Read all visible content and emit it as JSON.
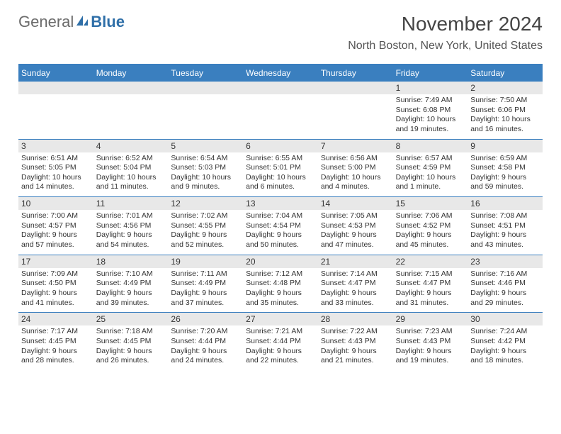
{
  "logo": {
    "text1": "General",
    "text2": "Blue",
    "brand_color": "#3a7fbf"
  },
  "title": "November 2024",
  "location": "North Boston, New York, United States",
  "colors": {
    "header_bg": "#3a7fbf",
    "date_bg": "#e8e8e8",
    "rule": "#3a7fbf",
    "logo_blue": "#2f6fa8"
  },
  "day_headers": [
    "Sunday",
    "Monday",
    "Tuesday",
    "Wednesday",
    "Thursday",
    "Friday",
    "Saturday"
  ],
  "weeks": [
    {
      "dates": [
        "",
        "",
        "",
        "",
        "",
        "1",
        "2"
      ],
      "info": [
        "",
        "",
        "",
        "",
        "",
        "Sunrise: 7:49 AM\nSunset: 6:08 PM\nDaylight: 10 hours and 19 minutes.",
        "Sunrise: 7:50 AM\nSunset: 6:06 PM\nDaylight: 10 hours and 16 minutes."
      ]
    },
    {
      "dates": [
        "3",
        "4",
        "5",
        "6",
        "7",
        "8",
        "9"
      ],
      "info": [
        "Sunrise: 6:51 AM\nSunset: 5:05 PM\nDaylight: 10 hours and 14 minutes.",
        "Sunrise: 6:52 AM\nSunset: 5:04 PM\nDaylight: 10 hours and 11 minutes.",
        "Sunrise: 6:54 AM\nSunset: 5:03 PM\nDaylight: 10 hours and 9 minutes.",
        "Sunrise: 6:55 AM\nSunset: 5:01 PM\nDaylight: 10 hours and 6 minutes.",
        "Sunrise: 6:56 AM\nSunset: 5:00 PM\nDaylight: 10 hours and 4 minutes.",
        "Sunrise: 6:57 AM\nSunset: 4:59 PM\nDaylight: 10 hours and 1 minute.",
        "Sunrise: 6:59 AM\nSunset: 4:58 PM\nDaylight: 9 hours and 59 minutes."
      ]
    },
    {
      "dates": [
        "10",
        "11",
        "12",
        "13",
        "14",
        "15",
        "16"
      ],
      "info": [
        "Sunrise: 7:00 AM\nSunset: 4:57 PM\nDaylight: 9 hours and 57 minutes.",
        "Sunrise: 7:01 AM\nSunset: 4:56 PM\nDaylight: 9 hours and 54 minutes.",
        "Sunrise: 7:02 AM\nSunset: 4:55 PM\nDaylight: 9 hours and 52 minutes.",
        "Sunrise: 7:04 AM\nSunset: 4:54 PM\nDaylight: 9 hours and 50 minutes.",
        "Sunrise: 7:05 AM\nSunset: 4:53 PM\nDaylight: 9 hours and 47 minutes.",
        "Sunrise: 7:06 AM\nSunset: 4:52 PM\nDaylight: 9 hours and 45 minutes.",
        "Sunrise: 7:08 AM\nSunset: 4:51 PM\nDaylight: 9 hours and 43 minutes."
      ]
    },
    {
      "dates": [
        "17",
        "18",
        "19",
        "20",
        "21",
        "22",
        "23"
      ],
      "info": [
        "Sunrise: 7:09 AM\nSunset: 4:50 PM\nDaylight: 9 hours and 41 minutes.",
        "Sunrise: 7:10 AM\nSunset: 4:49 PM\nDaylight: 9 hours and 39 minutes.",
        "Sunrise: 7:11 AM\nSunset: 4:49 PM\nDaylight: 9 hours and 37 minutes.",
        "Sunrise: 7:12 AM\nSunset: 4:48 PM\nDaylight: 9 hours and 35 minutes.",
        "Sunrise: 7:14 AM\nSunset: 4:47 PM\nDaylight: 9 hours and 33 minutes.",
        "Sunrise: 7:15 AM\nSunset: 4:47 PM\nDaylight: 9 hours and 31 minutes.",
        "Sunrise: 7:16 AM\nSunset: 4:46 PM\nDaylight: 9 hours and 29 minutes."
      ]
    },
    {
      "dates": [
        "24",
        "25",
        "26",
        "27",
        "28",
        "29",
        "30"
      ],
      "info": [
        "Sunrise: 7:17 AM\nSunset: 4:45 PM\nDaylight: 9 hours and 28 minutes.",
        "Sunrise: 7:18 AM\nSunset: 4:45 PM\nDaylight: 9 hours and 26 minutes.",
        "Sunrise: 7:20 AM\nSunset: 4:44 PM\nDaylight: 9 hours and 24 minutes.",
        "Sunrise: 7:21 AM\nSunset: 4:44 PM\nDaylight: 9 hours and 22 minutes.",
        "Sunrise: 7:22 AM\nSunset: 4:43 PM\nDaylight: 9 hours and 21 minutes.",
        "Sunrise: 7:23 AM\nSunset: 4:43 PM\nDaylight: 9 hours and 19 minutes.",
        "Sunrise: 7:24 AM\nSunset: 4:42 PM\nDaylight: 9 hours and 18 minutes."
      ]
    }
  ]
}
